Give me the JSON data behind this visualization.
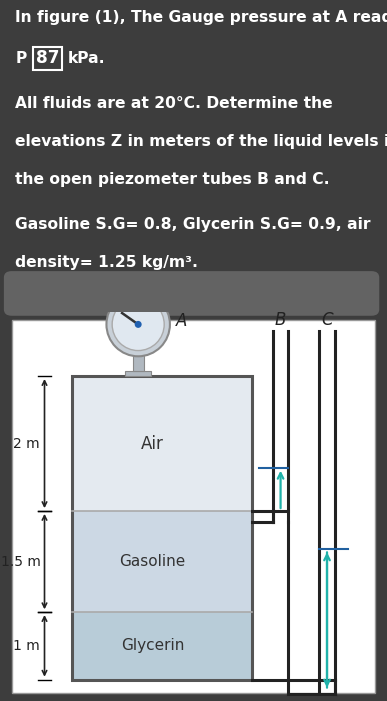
{
  "bg_color": "#3d3d3d",
  "text_color": "#ffffff",
  "diagram_bg": "#ffffff",
  "air_color": "#e4eaf0",
  "gasoline_color": "#ccd8e4",
  "glycerin_color": "#b8ccd8",
  "label_air": "Air",
  "label_gasoline": "Gasoline",
  "label_glycerin": "Glycerin",
  "dim_2m": "2 m",
  "dim_15m": "1.5 m",
  "dim_1m": "1 m",
  "arrow_color": "#20b2aa",
  "tube_color": "#222222",
  "label_A": "A",
  "label_B": "B",
  "label_C": "C",
  "gauge_outer_color": "#c8d0d8",
  "gauge_inner_color": "#e0e8f0",
  "stem_color": "#b0b8c0",
  "needle_color": "#333333",
  "dot_color": "#2060b0",
  "line_B_color": "#2060a0",
  "line_C_color": "#2060a0",
  "separator_color": "#aaaaaa"
}
